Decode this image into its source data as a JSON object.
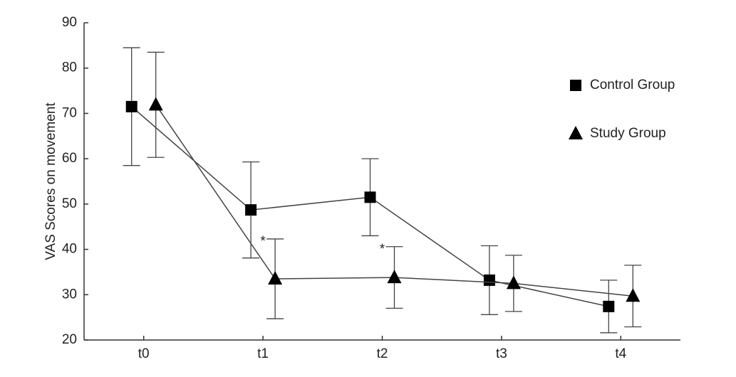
{
  "chart_data": {
    "type": "line",
    "ylabel": "VAS Scores on movement",
    "categories": [
      "t0",
      "t1",
      "t2",
      "t3",
      "t4"
    ],
    "series": [
      {
        "name": "Control Group",
        "color": "#000000",
        "marker": "square",
        "values": [
          71.5,
          48.7,
          51.5,
          33.2,
          27.4
        ],
        "errors": [
          13.0,
          10.6,
          8.5,
          7.6,
          5.8
        ]
      },
      {
        "name": "Study Group",
        "color": "#000000",
        "marker": "triangle",
        "values": [
          71.9,
          33.5,
          33.8,
          32.5,
          29.7
        ],
        "errors": [
          11.6,
          8.8,
          6.8,
          6.2,
          6.8
        ]
      }
    ],
    "annotations": [
      {
        "text": "*",
        "category": "t1"
      },
      {
        "text": "*",
        "category": "t2"
      }
    ],
    "ylim": [
      20,
      90
    ],
    "yticks": [
      20,
      30,
      40,
      50,
      60,
      70,
      80,
      90
    ],
    "grid": false,
    "legend": "right"
  }
}
